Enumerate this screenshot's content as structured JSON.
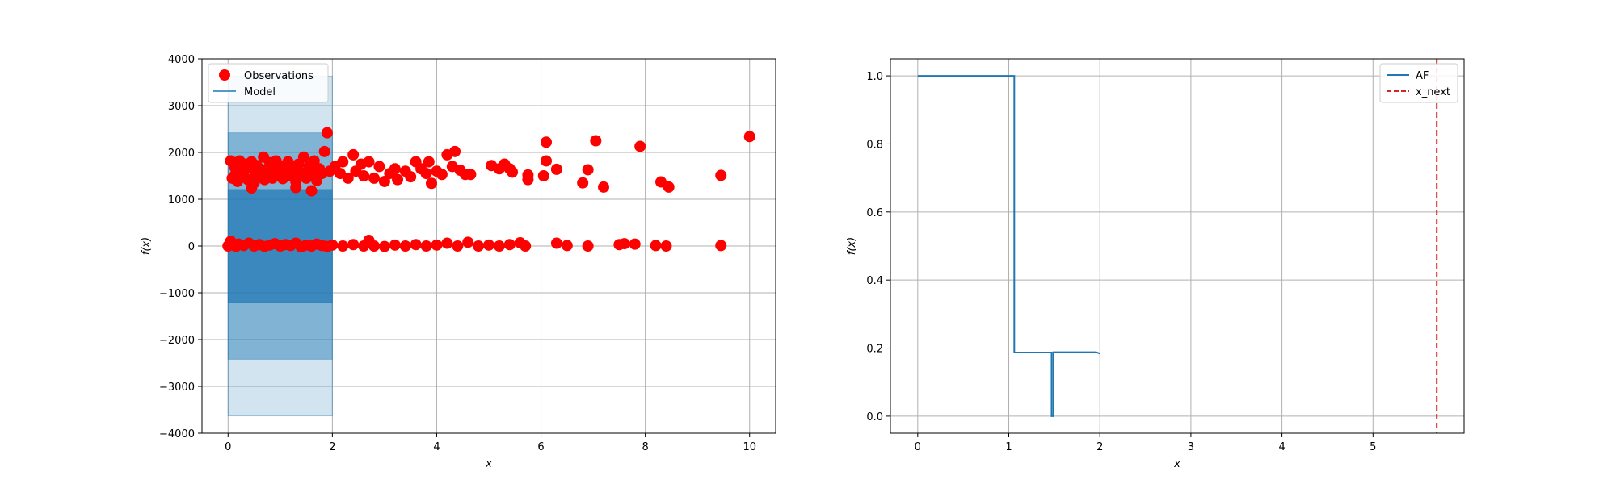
{
  "chart_data": [
    {
      "type": "scatter",
      "xlabel": "x",
      "ylabel": "f(x)",
      "xlim": [
        -0.5,
        10.5
      ],
      "ylim": [
        -4000,
        4000
      ],
      "xticks": [
        "0",
        "2",
        "4",
        "6",
        "8",
        "10"
      ],
      "yticks": [
        "−4000",
        "−3000",
        "−2000",
        "−1000",
        "0",
        "1000",
        "2000",
        "3000",
        "4000"
      ],
      "grid": true,
      "legend": {
        "placement": "top-left",
        "entries": [
          "Observations",
          "Model"
        ]
      },
      "colors": {
        "observations": "#ff0000",
        "model": "#1f77b4"
      },
      "model": {
        "x_range": [
          0,
          2
        ],
        "mean": 0,
        "bands": [
          {
            "level": 1,
            "lower": -1210,
            "upper": 1210
          },
          {
            "level": 2,
            "lower": -2420,
            "upper": 2420
          },
          {
            "level": 3,
            "lower": -3630,
            "upper": 3630
          }
        ]
      },
      "series": [
        {
          "name": "Observations",
          "upper_cluster": [
            [
              0.05,
              1820
            ],
            [
              0.08,
              1450
            ],
            [
              0.12,
              1700
            ],
            [
              0.15,
              1550
            ],
            [
              0.18,
              1380
            ],
            [
              0.22,
              1820
            ],
            [
              0.25,
              1620
            ],
            [
              0.3,
              1500
            ],
            [
              0.33,
              1750
            ],
            [
              0.38,
              1420
            ],
            [
              0.42,
              1680
            ],
            [
              0.45,
              1800
            ],
            [
              0.5,
              1350
            ],
            [
              0.52,
              1580
            ],
            [
              0.55,
              1720
            ],
            [
              0.6,
              1480
            ],
            [
              0.63,
              1640
            ],
            [
              0.68,
              1900
            ],
            [
              0.7,
              1420
            ],
            [
              0.75,
              1560
            ],
            [
              0.8,
              1780
            ],
            [
              0.85,
              1450
            ],
            [
              0.88,
              1600
            ],
            [
              0.92,
              1820
            ],
            [
              0.95,
              1520
            ],
            [
              1.0,
              1700
            ],
            [
              1.05,
              1440
            ],
            [
              1.1,
              1620
            ],
            [
              1.15,
              1800
            ],
            [
              1.2,
              1500
            ],
            [
              1.25,
              1650
            ],
            [
              1.3,
              1380
            ],
            [
              1.35,
              1750
            ],
            [
              1.4,
              1560
            ],
            [
              1.45,
              1900
            ],
            [
              1.5,
              1450
            ],
            [
              1.55,
              1700
            ],
            [
              1.6,
              1580
            ],
            [
              1.65,
              1820
            ],
            [
              1.7,
              1400
            ],
            [
              1.75,
              1650
            ],
            [
              1.8,
              1550
            ],
            [
              1.85,
              2020
            ],
            [
              1.9,
              2420
            ],
            [
              1.95,
              1600
            ],
            [
              0.45,
              1240
            ],
            [
              1.3,
              1250
            ],
            [
              1.6,
              1180
            ],
            [
              2.05,
              1700
            ],
            [
              2.15,
              1550
            ],
            [
              2.2,
              1800
            ],
            [
              2.3,
              1450
            ],
            [
              2.4,
              1950
            ],
            [
              2.45,
              1600
            ],
            [
              2.55,
              1750
            ],
            [
              2.6,
              1500
            ],
            [
              2.7,
              1800
            ],
            [
              2.8,
              1450
            ],
            [
              2.9,
              1700
            ],
            [
              3.0,
              1380
            ],
            [
              3.1,
              1550
            ],
            [
              3.2,
              1650
            ],
            [
              3.25,
              1420
            ],
            [
              3.4,
              1600
            ],
            [
              3.5,
              1480
            ],
            [
              3.6,
              1800
            ],
            [
              3.7,
              1650
            ],
            [
              3.8,
              1550
            ],
            [
              3.85,
              1800
            ],
            [
              3.9,
              1340
            ],
            [
              4.0,
              1600
            ],
            [
              4.1,
              1530
            ],
            [
              4.2,
              1950
            ],
            [
              4.3,
              1700
            ],
            [
              4.35,
              2020
            ],
            [
              4.45,
              1620
            ],
            [
              4.55,
              1530
            ],
            [
              4.65,
              1530
            ],
            [
              5.05,
              1720
            ],
            [
              5.2,
              1650
            ],
            [
              5.3,
              1750
            ],
            [
              5.4,
              1650
            ],
            [
              5.45,
              1580
            ],
            [
              5.75,
              1520
            ],
            [
              5.75,
              1420
            ],
            [
              6.05,
              1500
            ],
            [
              6.1,
              2220
            ],
            [
              6.1,
              1820
            ],
            [
              6.3,
              1640
            ],
            [
              6.8,
              1350
            ],
            [
              6.9,
              1630
            ],
            [
              7.05,
              2250
            ],
            [
              7.2,
              1260
            ],
            [
              7.9,
              2130
            ],
            [
              8.3,
              1370
            ],
            [
              8.45,
              1260
            ],
            [
              9.45,
              1510
            ],
            [
              10.0,
              2340
            ]
          ],
          "lower_cluster": [
            [
              0.0,
              0
            ],
            [
              0.05,
              100
            ],
            [
              0.1,
              30
            ],
            [
              0.15,
              -10
            ],
            [
              0.2,
              40
            ],
            [
              0.3,
              10
            ],
            [
              0.4,
              60
            ],
            [
              0.5,
              0
            ],
            [
              0.6,
              30
            ],
            [
              0.7,
              -10
            ],
            [
              0.8,
              20
            ],
            [
              0.9,
              50
            ],
            [
              1.0,
              0
            ],
            [
              1.1,
              30
            ],
            [
              1.2,
              10
            ],
            [
              1.3,
              60
            ],
            [
              1.4,
              -20
            ],
            [
              1.5,
              20
            ],
            [
              1.6,
              0
            ],
            [
              1.7,
              40
            ],
            [
              1.8,
              10
            ],
            [
              1.9,
              -10
            ],
            [
              2.0,
              20
            ],
            [
              2.2,
              0
            ],
            [
              2.4,
              30
            ],
            [
              2.6,
              0
            ],
            [
              2.7,
              120
            ],
            [
              2.8,
              0
            ],
            [
              3.0,
              -10
            ],
            [
              3.2,
              20
            ],
            [
              3.4,
              0
            ],
            [
              3.6,
              30
            ],
            [
              3.8,
              0
            ],
            [
              4.0,
              20
            ],
            [
              4.2,
              60
            ],
            [
              4.4,
              0
            ],
            [
              4.6,
              80
            ],
            [
              4.8,
              0
            ],
            [
              5.0,
              20
            ],
            [
              5.2,
              0
            ],
            [
              5.4,
              30
            ],
            [
              5.6,
              70
            ],
            [
              5.7,
              0
            ],
            [
              6.3,
              60
            ],
            [
              6.5,
              10
            ],
            [
              6.9,
              0
            ],
            [
              7.5,
              30
            ],
            [
              7.6,
              50
            ],
            [
              7.8,
              40
            ],
            [
              8.2,
              10
            ],
            [
              8.4,
              0
            ],
            [
              9.45,
              10
            ]
          ]
        }
      ]
    },
    {
      "type": "line",
      "xlabel": "x",
      "ylabel": "f(x)",
      "xlim": [
        -0.3,
        6.0
      ],
      "ylim": [
        -0.05,
        1.05
      ],
      "xticks": [
        "0",
        "1",
        "2",
        "3",
        "4",
        "5"
      ],
      "yticks": [
        "0.0",
        "0.2",
        "0.4",
        "0.6",
        "0.8",
        "1.0"
      ],
      "grid": true,
      "legend": {
        "placement": "top-right",
        "entries": [
          "AF",
          "x_next"
        ]
      },
      "colors": {
        "af": "#1f77b4",
        "x_next": "#d62728"
      },
      "series": [
        {
          "name": "AF",
          "x": [
            0,
            1.06,
            1.06,
            1.47,
            1.47,
            1.49,
            1.49,
            1.96,
            2.0
          ],
          "y": [
            1.0,
            1.0,
            0.187,
            0.187,
            0.0,
            0.0,
            0.188,
            0.188,
            0.184
          ]
        },
        {
          "name": "x_next",
          "x_value": 5.7
        }
      ]
    }
  ]
}
